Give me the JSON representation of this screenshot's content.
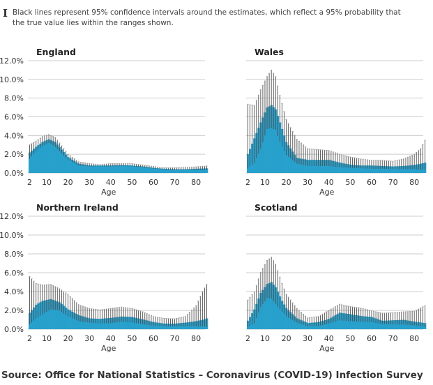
{
  "note": {
    "icon": "confidence-interval-icon",
    "text": "Black lines represent 95% confidence intervals around the estimates, which reflect a 95% probability that the true value lies within the ranges shown."
  },
  "source": "Source: Office for National Statistics – Coronavirus (COVID-19) Infection Survey",
  "colors": {
    "estimate": "#27a0cc",
    "interval": "#4d4d4d",
    "grid": "#cccccc"
  },
  "chart_data": [
    {
      "type": "bar",
      "title": "England",
      "xlabel": "Age",
      "ylabel": "",
      "xticks": [
        "2",
        "10",
        "20",
        "30",
        "40",
        "50",
        "60",
        "70",
        "80"
      ],
      "yticks": [
        "0.0%",
        "2.0%",
        "4.0%",
        "6.0%",
        "8.0%",
        "10.0%",
        "12.0%"
      ],
      "ylim": [
        0,
        12
      ],
      "xlim": [
        2,
        85
      ],
      "grid": true,
      "points_columns": [
        "age",
        "estimate",
        "lower_95",
        "upper_95"
      ],
      "points": [
        [
          2,
          2.2,
          1.5,
          3.0
        ],
        [
          5,
          2.8,
          2.3,
          3.4
        ],
        [
          8,
          3.3,
          2.9,
          3.9
        ],
        [
          11,
          3.6,
          3.2,
          4.1
        ],
        [
          14,
          3.3,
          2.8,
          3.8
        ],
        [
          17,
          2.5,
          2.1,
          2.9
        ],
        [
          20,
          1.7,
          1.4,
          2.0
        ],
        [
          25,
          1.0,
          0.8,
          1.2
        ],
        [
          30,
          0.8,
          0.7,
          1.0
        ],
        [
          35,
          0.8,
          0.7,
          0.9
        ],
        [
          40,
          0.8,
          0.7,
          1.0
        ],
        [
          45,
          0.85,
          0.75,
          1.0
        ],
        [
          50,
          0.8,
          0.7,
          1.0
        ],
        [
          55,
          0.7,
          0.6,
          0.85
        ],
        [
          60,
          0.55,
          0.45,
          0.7
        ],
        [
          65,
          0.45,
          0.35,
          0.55
        ],
        [
          70,
          0.4,
          0.3,
          0.55
        ],
        [
          75,
          0.4,
          0.3,
          0.6
        ],
        [
          80,
          0.45,
          0.3,
          0.65
        ],
        [
          85,
          0.5,
          0.3,
          0.75
        ]
      ]
    },
    {
      "type": "bar",
      "title": "Wales",
      "xlabel": "Age",
      "ylabel": "",
      "xticks": [
        "2",
        "10",
        "20",
        "30",
        "40",
        "50",
        "60",
        "70",
        "80"
      ],
      "yticks": [],
      "ylim": [
        0,
        12
      ],
      "xlim": [
        2,
        85
      ],
      "grid": true,
      "points_columns": [
        "age",
        "estimate",
        "lower_95",
        "upper_95"
      ],
      "points": [
        [
          2,
          2.0,
          0.5,
          7.35
        ],
        [
          5,
          3.7,
          1.1,
          7.2
        ],
        [
          8,
          5.4,
          2.6,
          8.9
        ],
        [
          11,
          7.0,
          4.7,
          10.3
        ],
        [
          13,
          7.25,
          4.8,
          11.0
        ],
        [
          15,
          6.8,
          4.6,
          10.3
        ],
        [
          17,
          5.4,
          3.3,
          8.3
        ],
        [
          20,
          3.3,
          1.9,
          5.7
        ],
        [
          25,
          1.6,
          1.0,
          3.6
        ],
        [
          30,
          1.4,
          0.75,
          2.6
        ],
        [
          35,
          1.4,
          0.75,
          2.5
        ],
        [
          40,
          1.4,
          0.75,
          2.4
        ],
        [
          45,
          1.1,
          0.6,
          2.0
        ],
        [
          50,
          0.9,
          0.55,
          1.7
        ],
        [
          55,
          0.8,
          0.5,
          1.5
        ],
        [
          60,
          0.8,
          0.45,
          1.35
        ],
        [
          65,
          0.75,
          0.45,
          1.35
        ],
        [
          70,
          0.7,
          0.4,
          1.25
        ],
        [
          75,
          0.75,
          0.4,
          1.5
        ],
        [
          80,
          0.85,
          0.4,
          2.0
        ],
        [
          83,
          1.0,
          0.35,
          2.6
        ],
        [
          85,
          1.1,
          0.35,
          3.5
        ]
      ]
    },
    {
      "type": "bar",
      "title": "Northern Ireland",
      "xlabel": "Age",
      "ylabel": "",
      "xticks": [
        "2",
        "10",
        "20",
        "30",
        "40",
        "50",
        "60",
        "70",
        "80"
      ],
      "yticks": [
        "0.0%",
        "2.0%",
        "4.0%",
        "6.0%",
        "8.0%",
        "10.0%",
        "12.0%"
      ],
      "ylim": [
        0,
        12
      ],
      "xlim": [
        2,
        85
      ],
      "grid": true,
      "points_columns": [
        "age",
        "estimate",
        "lower_95",
        "upper_95"
      ],
      "points": [
        [
          2,
          1.75,
          0.5,
          5.6
        ],
        [
          5,
          2.6,
          1.1,
          4.85
        ],
        [
          8,
          3.0,
          1.6,
          4.7
        ],
        [
          12,
          3.2,
          2.1,
          4.75
        ],
        [
          16,
          2.85,
          2.0,
          4.3
        ],
        [
          20,
          2.1,
          1.35,
          3.7
        ],
        [
          25,
          1.5,
          0.85,
          2.6
        ],
        [
          30,
          1.15,
          0.7,
          2.2
        ],
        [
          35,
          1.1,
          0.6,
          2.05
        ],
        [
          40,
          1.2,
          0.65,
          2.2
        ],
        [
          45,
          1.35,
          0.8,
          2.35
        ],
        [
          50,
          1.3,
          0.7,
          2.2
        ],
        [
          55,
          1.05,
          0.55,
          1.85
        ],
        [
          60,
          0.75,
          0.35,
          1.35
        ],
        [
          65,
          0.6,
          0.3,
          1.15
        ],
        [
          70,
          0.6,
          0.3,
          1.1
        ],
        [
          75,
          0.7,
          0.3,
          1.35
        ],
        [
          80,
          0.85,
          0.3,
          2.5
        ],
        [
          83,
          1.0,
          0.3,
          4.0
        ],
        [
          85,
          1.15,
          0.25,
          4.75
        ]
      ]
    },
    {
      "type": "bar",
      "title": "Scotland",
      "xlabel": "Age",
      "ylabel": "",
      "xticks": [
        "2",
        "10",
        "20",
        "30",
        "40",
        "50",
        "60",
        "70",
        "80"
      ],
      "yticks": [],
      "ylim": [
        0,
        12
      ],
      "xlim": [
        2,
        85
      ],
      "grid": true,
      "points_columns": [
        "age",
        "estimate",
        "lower_95",
        "upper_95"
      ],
      "points": [
        [
          2,
          0.9,
          0.25,
          3.1
        ],
        [
          5,
          2.1,
          0.6,
          3.95
        ],
        [
          8,
          3.85,
          2.35,
          6.05
        ],
        [
          11,
          4.8,
          3.3,
          7.3
        ],
        [
          13,
          5.0,
          3.25,
          7.65
        ],
        [
          15,
          4.45,
          2.7,
          6.9
        ],
        [
          18,
          3.0,
          1.85,
          4.85
        ],
        [
          20,
          2.25,
          1.35,
          3.7
        ],
        [
          25,
          1.15,
          0.7,
          2.2
        ],
        [
          30,
          0.65,
          0.3,
          1.2
        ],
        [
          35,
          0.75,
          0.35,
          1.35
        ],
        [
          40,
          1.1,
          0.6,
          2.0
        ],
        [
          45,
          1.75,
          0.95,
          2.65
        ],
        [
          50,
          1.6,
          0.85,
          2.4
        ],
        [
          55,
          1.4,
          0.8,
          2.25
        ],
        [
          60,
          1.3,
          0.75,
          1.95
        ],
        [
          65,
          0.9,
          0.55,
          1.7
        ],
        [
          70,
          0.95,
          0.5,
          1.75
        ],
        [
          75,
          1.0,
          0.5,
          1.85
        ],
        [
          80,
          0.8,
          0.4,
          1.9
        ],
        [
          85,
          0.65,
          0.25,
          2.5
        ]
      ]
    }
  ]
}
